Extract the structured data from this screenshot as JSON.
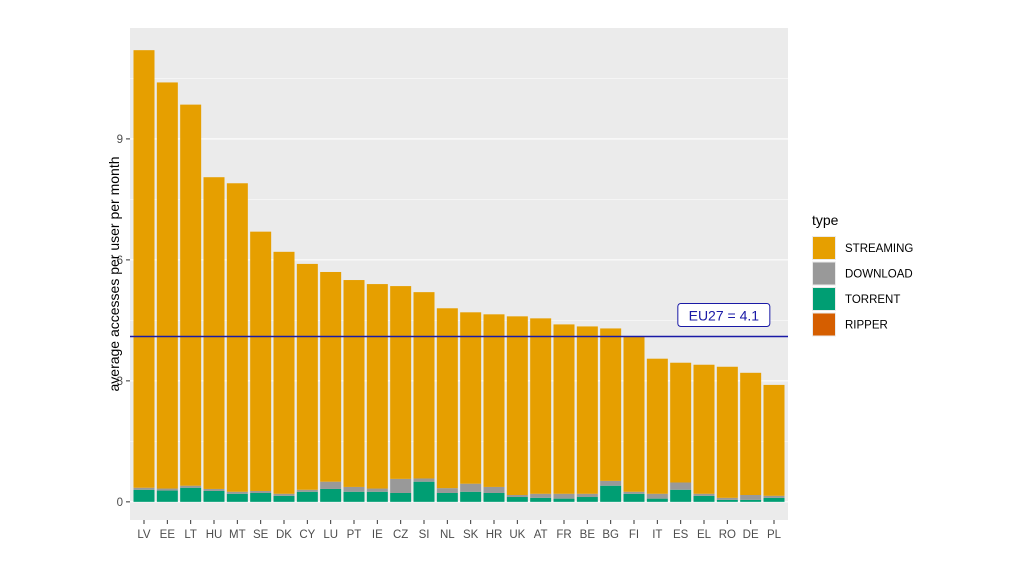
{
  "chart_data": {
    "type": "bar",
    "stacked": true,
    "ylabel": "average accesses per user per month",
    "xlabel": "",
    "ylim": [
      -0.45,
      11.75
    ],
    "yticks": [
      0,
      3,
      6,
      9
    ],
    "yticks_labels": [
      "0",
      "3",
      "6",
      "9"
    ],
    "grid": true,
    "legend_title": "type",
    "legend_position": "right",
    "categories": [
      "LV",
      "EE",
      "LT",
      "HU",
      "MT",
      "SE",
      "DK",
      "CY",
      "LU",
      "PT",
      "IE",
      "CZ",
      "SI",
      "NL",
      "SK",
      "HR",
      "UK",
      "AT",
      "FR",
      "BE",
      "BG",
      "FI",
      "IT",
      "ES",
      "EL",
      "RO",
      "DE",
      "PL"
    ],
    "totals": [
      11.2,
      10.4,
      9.85,
      8.05,
      7.9,
      6.7,
      6.2,
      5.9,
      5.7,
      5.5,
      5.4,
      5.35,
      5.2,
      4.8,
      4.7,
      4.65,
      4.6,
      4.55,
      4.4,
      4.35,
      4.3,
      4.1,
      3.55,
      3.45,
      3.4,
      3.35,
      3.2,
      2.9
    ],
    "series": [
      {
        "name": "RIPPER",
        "color": "#D55E00",
        "values": [
          0,
          0,
          0,
          0,
          0,
          0,
          0,
          0,
          0,
          0,
          0,
          0,
          0,
          0,
          0,
          0,
          0,
          0,
          0,
          0,
          0,
          0,
          0,
          0,
          0,
          0,
          0,
          0
        ]
      },
      {
        "name": "TORRENT",
        "color": "#009E73",
        "values": [
          0.3,
          0.28,
          0.35,
          0.27,
          0.2,
          0.22,
          0.15,
          0.25,
          0.32,
          0.25,
          0.25,
          0.22,
          0.5,
          0.22,
          0.25,
          0.22,
          0.12,
          0.1,
          0.08,
          0.12,
          0.4,
          0.2,
          0.08,
          0.3,
          0.15,
          0.05,
          0.05,
          0.1
        ]
      },
      {
        "name": "DOWNLOAD",
        "color": "#999999",
        "values": [
          0.05,
          0.05,
          0.05,
          0.05,
          0.05,
          0.05,
          0.05,
          0.05,
          0.18,
          0.12,
          0.08,
          0.35,
          0.08,
          0.12,
          0.2,
          0.15,
          0.05,
          0.1,
          0.12,
          0.08,
          0.12,
          0.05,
          0.12,
          0.18,
          0.05,
          0.05,
          0.12,
          0.05
        ]
      },
      {
        "name": "STREAMING",
        "color": "#E69F00",
        "values": [
          10.85,
          10.07,
          9.45,
          7.73,
          7.65,
          6.43,
          6.0,
          5.6,
          5.2,
          5.13,
          5.07,
          4.78,
          4.62,
          4.46,
          4.25,
          4.28,
          4.43,
          4.35,
          4.2,
          4.15,
          3.78,
          3.85,
          3.35,
          2.97,
          3.2,
          3.25,
          3.03,
          2.75
        ]
      }
    ],
    "legend_order": [
      "STREAMING",
      "DOWNLOAD",
      "TORRENT",
      "RIPPER"
    ],
    "reference_line": {
      "value": 4.1,
      "label": "EU27 = 4.1",
      "color": "#1a1aa6"
    },
    "colors": {
      "panel": "#EBEBEB",
      "gridline": "#FFFFFF"
    }
  }
}
